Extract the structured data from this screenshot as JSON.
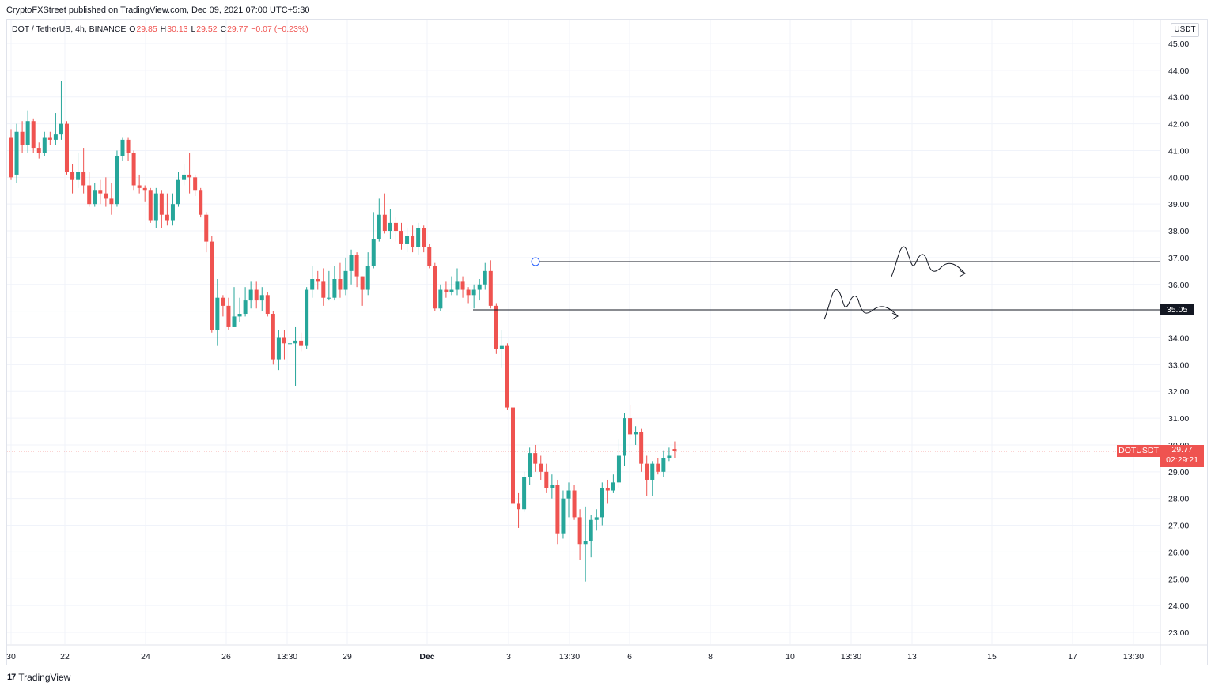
{
  "header": {
    "published": "CryptoFXStreet published on TradingView.com, Dec 09, 2021 07:00 UTC+5:30"
  },
  "legend": {
    "symbol": "DOT / TetherUS, 4h, BINANCE",
    "o_label": "O",
    "o_value": "29.85",
    "h_label": "H",
    "h_value": "30.13",
    "l_label": "L",
    "l_value": "29.52",
    "c_label": "C",
    "c_value": "29.77",
    "change": "−0.07 (−0.23%)"
  },
  "currency": "USDT",
  "footer": {
    "logo_text": "TradingView",
    "logo_mark": "17"
  },
  "colors": {
    "up": "#26a69a",
    "down": "#ef5350",
    "grid": "#f0f3fa",
    "line": "#131722"
  },
  "markers": {
    "level_label": "35.05",
    "symbol_label": "DOTUSDT",
    "last_price": "29.77",
    "countdown": "02:29:21"
  },
  "chart_data": {
    "type": "candlestick",
    "title": "",
    "ylim": [
      22.5,
      45.5
    ],
    "grid": true,
    "price_axis_labels": [
      "45.00",
      "44.00",
      "43.00",
      "42.00",
      "41.00",
      "40.00",
      "39.00",
      "38.00",
      "37.00",
      "36.00",
      "35.00",
      "34.00",
      "33.00",
      "32.00",
      "31.00",
      "30.00",
      "29.00",
      "28.00",
      "27.00",
      "26.00",
      "25.00",
      "24.00",
      "23.00"
    ],
    "time_axis_labels": [
      "30",
      "22",
      "24",
      "26",
      "13:30",
      "29",
      "Dec",
      "3",
      "13:30",
      "6",
      "8",
      "10",
      "13:30",
      "13",
      "15",
      "17",
      "13:30"
    ],
    "horizontal_levels": [
      36.85,
      35.05
    ],
    "last_price": 29.77,
    "candles": [
      [
        41.5,
        40.0,
        41.8,
        39.9
      ],
      [
        40.1,
        41.7,
        42.0,
        39.8
      ],
      [
        41.7,
        41.2,
        42.1,
        40.9
      ],
      [
        41.2,
        42.1,
        42.5,
        40.9
      ],
      [
        42.1,
        41.1,
        42.2,
        40.9
      ],
      [
        41.1,
        40.9,
        41.3,
        40.7
      ],
      [
        40.9,
        41.5,
        41.7,
        40.8
      ],
      [
        41.5,
        41.4,
        41.7,
        41.2
      ],
      [
        41.4,
        41.6,
        42.4,
        41.2
      ],
      [
        41.6,
        42.0,
        43.6,
        41.4
      ],
      [
        42.0,
        40.2,
        42.1,
        40.1
      ],
      [
        40.2,
        39.9,
        40.5,
        39.4
      ],
      [
        39.9,
        40.2,
        40.9,
        39.6
      ],
      [
        40.2,
        39.7,
        41.1,
        39.4
      ],
      [
        39.7,
        39.0,
        40.2,
        38.9
      ],
      [
        39.0,
        39.5,
        39.8,
        38.9
      ],
      [
        39.5,
        39.4,
        39.9,
        39.0
      ],
      [
        39.4,
        39.2,
        40.0,
        38.9
      ],
      [
        39.2,
        39.0,
        39.8,
        38.6
      ],
      [
        39.0,
        40.8,
        41.0,
        38.9
      ],
      [
        40.8,
        41.4,
        41.5,
        40.6
      ],
      [
        41.4,
        40.9,
        41.5,
        40.6
      ],
      [
        40.9,
        39.7,
        41.0,
        39.5
      ],
      [
        39.7,
        39.6,
        40.1,
        39.4
      ],
      [
        39.6,
        39.5,
        39.7,
        39.1
      ],
      [
        39.5,
        38.4,
        39.6,
        38.3
      ],
      [
        38.4,
        39.4,
        39.6,
        38.1
      ],
      [
        39.4,
        38.6,
        39.5,
        38.1
      ],
      [
        38.6,
        38.4,
        39.4,
        38.2
      ],
      [
        38.4,
        39.0,
        39.4,
        38.2
      ],
      [
        39.0,
        39.9,
        40.2,
        38.9
      ],
      [
        39.9,
        40.1,
        40.5,
        39.7
      ],
      [
        40.1,
        40.0,
        40.9,
        39.4
      ],
      [
        40.0,
        39.5,
        40.1,
        39.3
      ],
      [
        39.5,
        38.6,
        39.6,
        38.5
      ],
      [
        38.6,
        37.6,
        38.7,
        37.2
      ],
      [
        37.6,
        34.3,
        37.8,
        34.2
      ],
      [
        34.3,
        35.5,
        36.2,
        33.7
      ],
      [
        35.5,
        35.2,
        35.6,
        34.8
      ],
      [
        35.2,
        34.4,
        35.5,
        34.3
      ],
      [
        34.4,
        34.8,
        35.9,
        34.4
      ],
      [
        34.8,
        34.9,
        35.5,
        34.6
      ],
      [
        34.9,
        35.4,
        35.9,
        34.8
      ],
      [
        35.4,
        35.8,
        36.1,
        35.1
      ],
      [
        35.8,
        35.4,
        36.1,
        35.1
      ],
      [
        35.4,
        35.6,
        35.9,
        35.0
      ],
      [
        35.6,
        34.9,
        35.7,
        34.8
      ],
      [
        34.9,
        33.2,
        35.0,
        33.0
      ],
      [
        33.2,
        34.0,
        34.3,
        32.8
      ],
      [
        34.0,
        33.8,
        34.3,
        33.2
      ],
      [
        33.8,
        33.8,
        34.2,
        33.5
      ],
      [
        33.8,
        33.9,
        34.4,
        32.2
      ],
      [
        33.9,
        33.7,
        34.2,
        33.5
      ],
      [
        33.7,
        35.8,
        35.9,
        33.6
      ],
      [
        35.8,
        36.2,
        36.7,
        35.5
      ],
      [
        36.2,
        36.1,
        36.5,
        35.8
      ],
      [
        36.1,
        35.5,
        36.6,
        35.2
      ],
      [
        35.5,
        35.5,
        36.5,
        35.4
      ],
      [
        35.5,
        36.2,
        36.7,
        35.4
      ],
      [
        36.2,
        35.8,
        36.8,
        35.5
      ],
      [
        35.8,
        36.5,
        37.0,
        35.6
      ],
      [
        36.5,
        37.1,
        37.3,
        36.0
      ],
      [
        37.1,
        36.3,
        37.2,
        35.9
      ],
      [
        36.3,
        35.8,
        36.3,
        35.2
      ],
      [
        35.8,
        36.7,
        37.2,
        35.6
      ],
      [
        36.7,
        37.7,
        38.7,
        36.6
      ],
      [
        37.7,
        38.6,
        39.2,
        37.6
      ],
      [
        38.6,
        38.0,
        39.4,
        37.9
      ],
      [
        38.0,
        38.3,
        38.8,
        37.7
      ],
      [
        38.3,
        38.0,
        38.5,
        37.6
      ],
      [
        38.0,
        37.5,
        38.3,
        37.3
      ],
      [
        37.5,
        37.8,
        38.1,
        37.2
      ],
      [
        37.8,
        37.4,
        38.2,
        37.2
      ],
      [
        37.4,
        38.1,
        38.3,
        37.1
      ],
      [
        38.1,
        37.4,
        38.2,
        37.2
      ],
      [
        37.4,
        36.7,
        37.5,
        36.6
      ],
      [
        36.7,
        35.1,
        36.8,
        35.0
      ],
      [
        35.1,
        35.8,
        36.0,
        35.0
      ],
      [
        35.8,
        35.7,
        36.1,
        35.5
      ],
      [
        35.7,
        35.8,
        36.3,
        35.6
      ],
      [
        35.8,
        36.1,
        36.6,
        35.6
      ],
      [
        36.1,
        35.8,
        36.3,
        35.5
      ],
      [
        35.8,
        35.6,
        35.9,
        35.3
      ],
      [
        35.6,
        35.8,
        36.0,
        35.1
      ],
      [
        35.8,
        36.0,
        36.2,
        35.4
      ],
      [
        36.0,
        36.5,
        36.8,
        35.8
      ],
      [
        36.5,
        35.2,
        36.9,
        35.1
      ],
      [
        35.2,
        33.6,
        35.3,
        33.4
      ],
      [
        33.6,
        33.7,
        34.3,
        32.9
      ],
      [
        33.7,
        31.4,
        33.8,
        31.3
      ],
      [
        31.4,
        27.8,
        32.4,
        24.3
      ],
      [
        27.8,
        27.6,
        28.2,
        26.9
      ],
      [
        27.6,
        28.8,
        29.0,
        27.5
      ],
      [
        28.8,
        29.7,
        29.9,
        28.5
      ],
      [
        29.7,
        29.3,
        30.0,
        29.0
      ],
      [
        29.3,
        29.0,
        29.6,
        28.7
      ],
      [
        29.0,
        28.4,
        29.3,
        28.2
      ],
      [
        28.4,
        28.5,
        28.9,
        28.0
      ],
      [
        28.5,
        26.7,
        28.7,
        26.3
      ],
      [
        26.7,
        28.0,
        28.3,
        26.5
      ],
      [
        28.0,
        28.3,
        28.6,
        27.3
      ],
      [
        28.3,
        27.3,
        28.5,
        27.2
      ],
      [
        27.3,
        26.3,
        27.6,
        25.7
      ],
      [
        26.3,
        26.4,
        27.7,
        24.9
      ],
      [
        26.4,
        27.2,
        27.4,
        25.8
      ],
      [
        27.2,
        27.3,
        27.6,
        26.8
      ],
      [
        27.3,
        28.4,
        28.6,
        27.0
      ],
      [
        28.4,
        28.3,
        28.7,
        27.8
      ],
      [
        28.3,
        28.6,
        28.9,
        28.2
      ],
      [
        28.6,
        29.6,
        30.2,
        28.4
      ],
      [
        29.6,
        31.0,
        31.2,
        29.2
      ],
      [
        31.0,
        30.4,
        31.5,
        30.2
      ],
      [
        30.4,
        30.5,
        30.7,
        30.0
      ],
      [
        30.5,
        29.3,
        30.6,
        29.0
      ],
      [
        29.3,
        28.7,
        29.6,
        28.1
      ],
      [
        28.7,
        29.3,
        29.4,
        28.1
      ],
      [
        29.3,
        29.0,
        29.5,
        28.9
      ],
      [
        29.0,
        29.5,
        29.8,
        28.8
      ],
      [
        29.5,
        29.6,
        29.9,
        29.4
      ],
      [
        29.85,
        29.77,
        30.13,
        29.52
      ]
    ]
  }
}
